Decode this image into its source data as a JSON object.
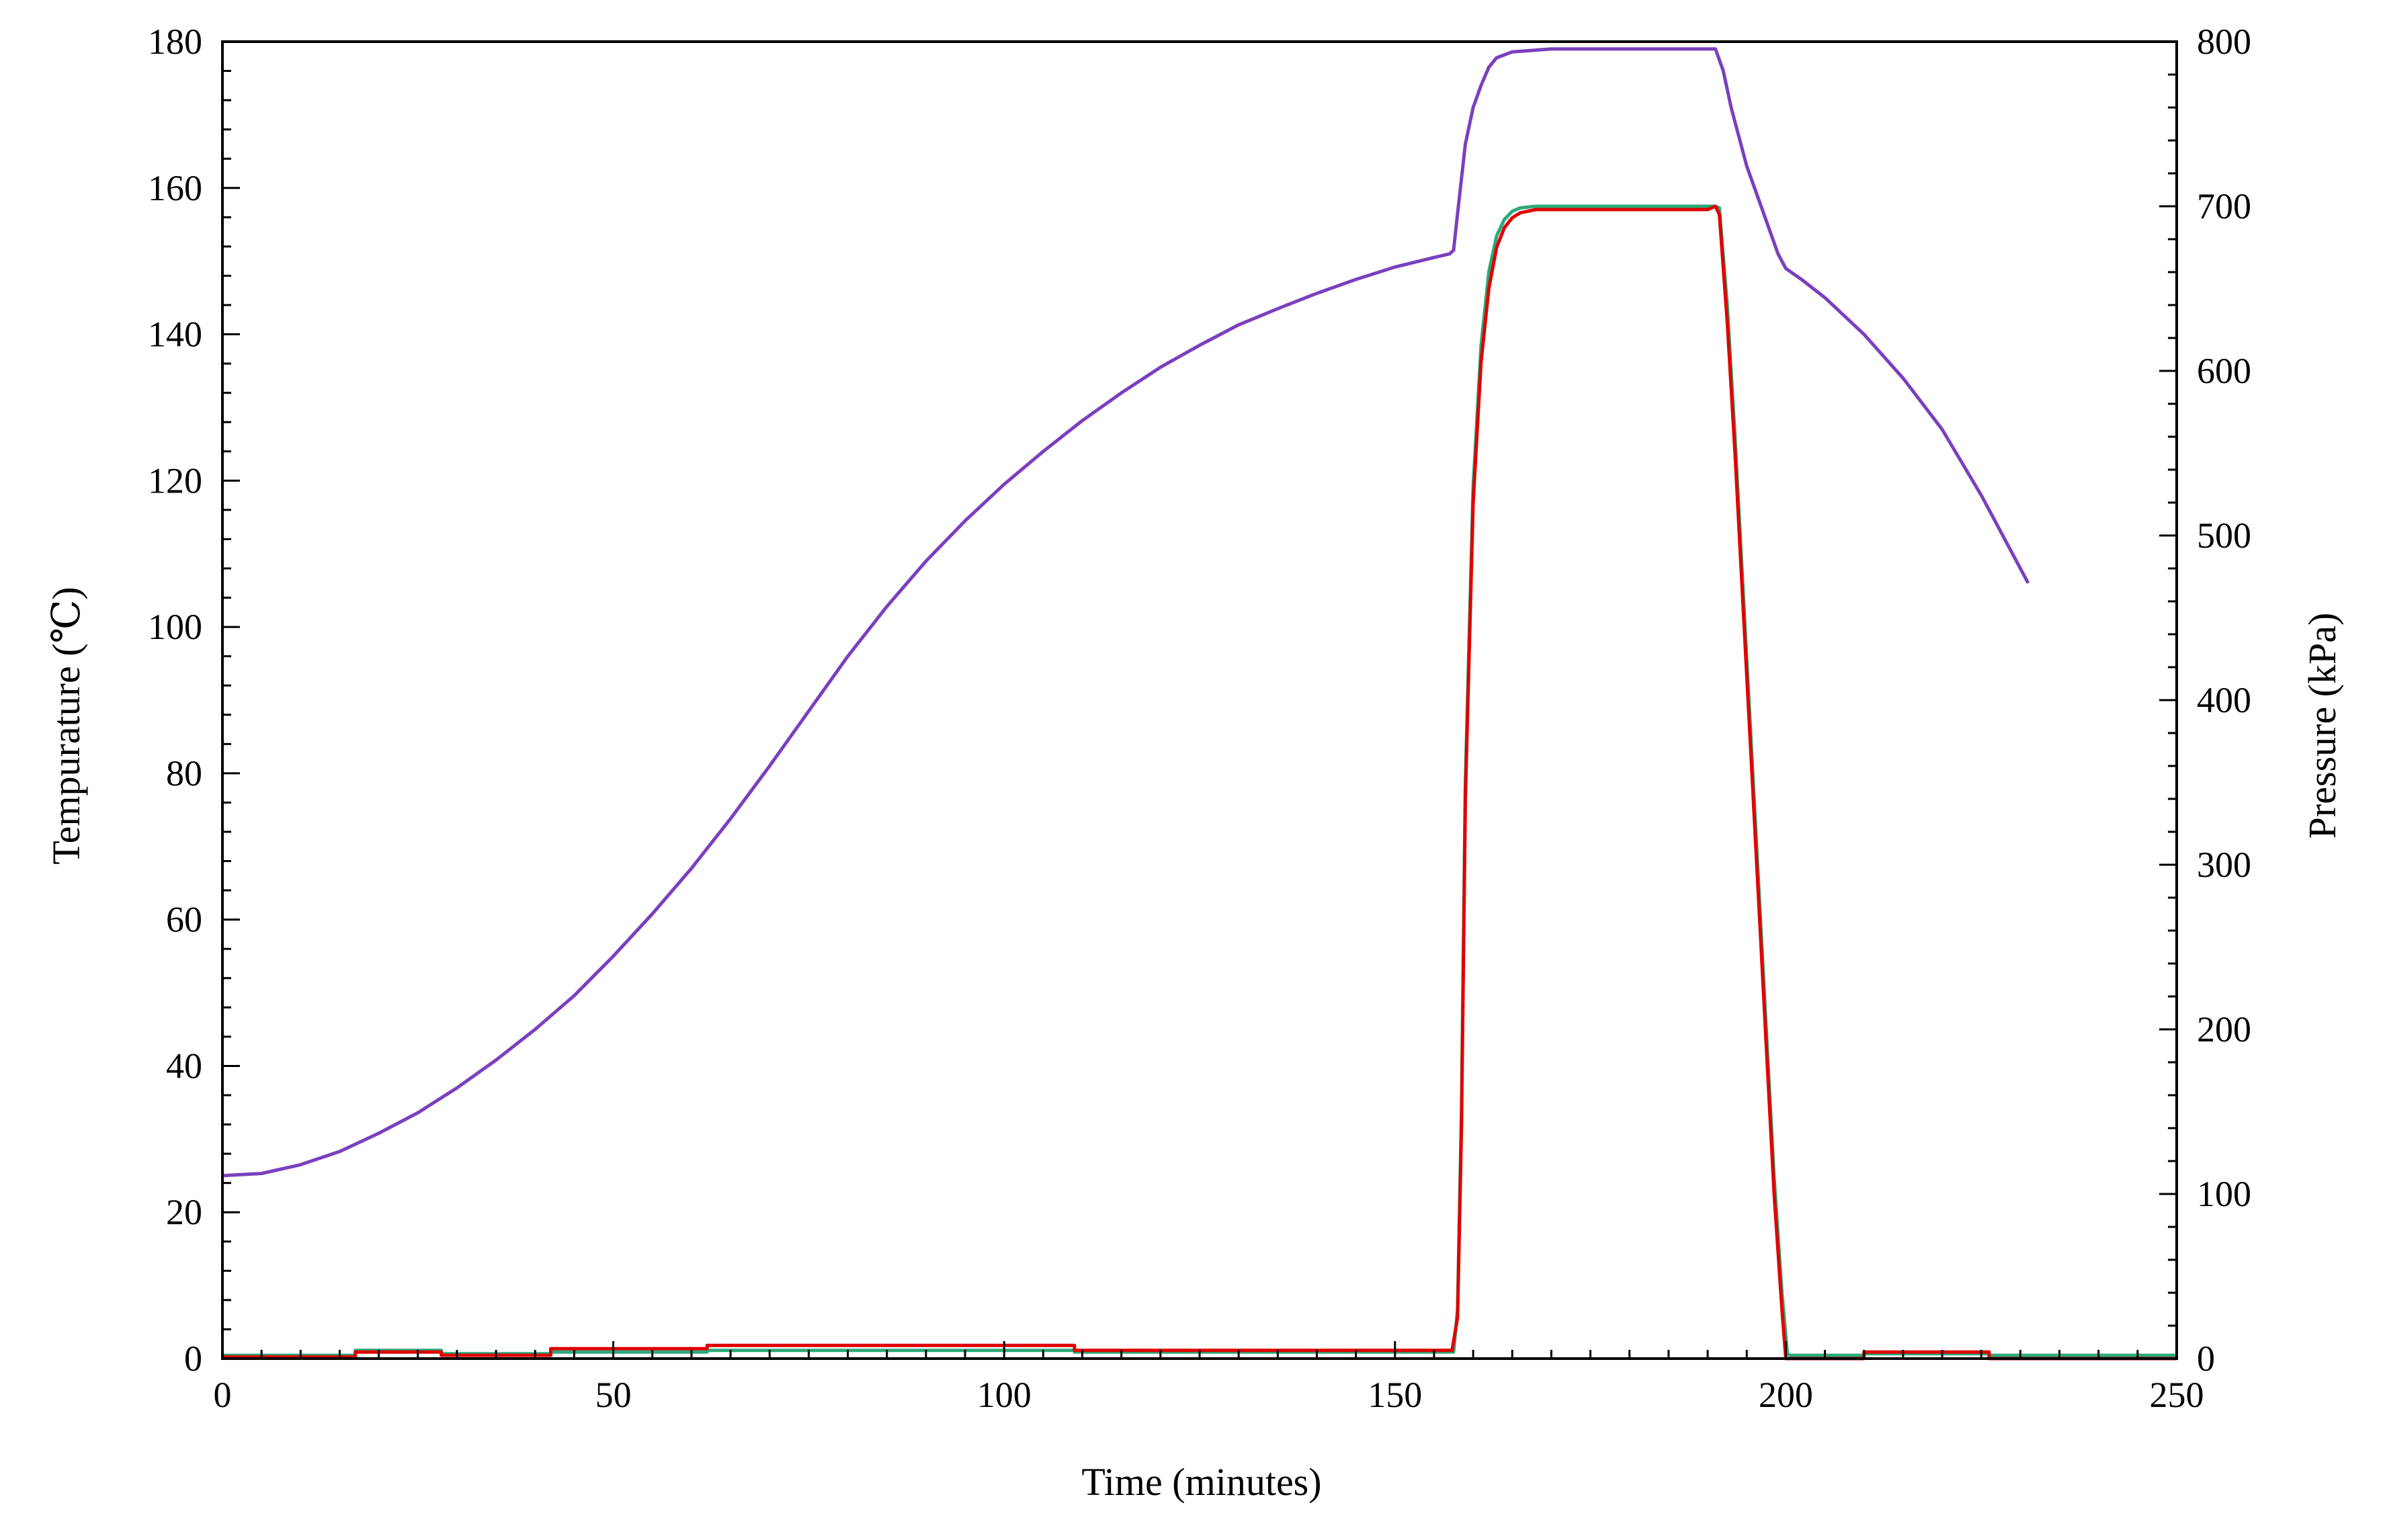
{
  "chart_data": {
    "type": "line",
    "title": "",
    "xlabel": "Time (minutes)",
    "ylabel_left": "Tempurature (℃)",
    "ylabel_right": "Pressure (kPa)",
    "xlim": [
      0,
      250
    ],
    "ylim_left": [
      0,
      180
    ],
    "ylim_right": [
      0,
      800
    ],
    "x_ticks": [
      "0",
      "50",
      "100",
      "150",
      "200",
      "250"
    ],
    "y_left_ticks": [
      "0",
      "20",
      "40",
      "60",
      "80",
      "100",
      "120",
      "140",
      "160",
      "180"
    ],
    "y_right_ticks": [
      "0",
      "100",
      "200",
      "300",
      "400",
      "500",
      "600",
      "700",
      "800"
    ],
    "grid": false,
    "legend": "none",
    "series": [
      {
        "axis": "left",
        "color": "#7B3FBF",
        "points": [
          [
            0,
            25
          ],
          [
            5,
            25.3
          ],
          [
            10,
            26.5
          ],
          [
            15,
            28.3
          ],
          [
            20,
            30.8
          ],
          [
            25,
            33.6
          ],
          [
            30,
            37
          ],
          [
            35,
            40.8
          ],
          [
            40,
            45
          ],
          [
            45,
            49.6
          ],
          [
            50,
            55
          ],
          [
            55,
            60.8
          ],
          [
            60,
            67
          ],
          [
            65,
            73.8
          ],
          [
            70,
            81
          ],
          [
            75,
            88.5
          ],
          [
            80,
            96
          ],
          [
            85,
            102.8
          ],
          [
            90,
            109
          ],
          [
            95,
            114.5
          ],
          [
            100,
            119.5
          ],
          [
            105,
            124
          ],
          [
            110,
            128.2
          ],
          [
            115,
            132
          ],
          [
            120,
            135.5
          ],
          [
            125,
            138.5
          ],
          [
            130,
            141.3
          ],
          [
            135,
            143.5
          ],
          [
            140,
            145.6
          ],
          [
            145,
            147.5
          ],
          [
            150,
            149.2
          ],
          [
            155,
            150.5
          ],
          [
            157,
            151
          ],
          [
            157.5,
            151.5
          ],
          [
            158,
            156.5
          ],
          [
            159,
            166
          ],
          [
            160,
            171
          ],
          [
            161,
            174
          ],
          [
            162,
            176.5
          ],
          [
            163,
            177.8
          ],
          [
            165,
            178.6
          ],
          [
            170,
            179
          ],
          [
            180,
            179
          ],
          [
            190,
            179
          ],
          [
            191,
            179
          ],
          [
            192,
            176
          ],
          [
            193,
            171
          ],
          [
            195,
            163
          ],
          [
            197,
            157
          ],
          [
            199,
            151
          ],
          [
            200,
            149
          ],
          [
            202,
            147.5
          ],
          [
            205,
            145
          ],
          [
            210,
            140
          ],
          [
            215,
            134
          ],
          [
            220,
            127
          ],
          [
            225,
            118
          ],
          [
            227,
            114
          ],
          [
            229,
            110
          ],
          [
            231,
            106
          ]
        ]
      },
      {
        "axis": "right",
        "color": "#2AAA7A",
        "points": [
          [
            0,
            2
          ],
          [
            17,
            2
          ],
          [
            17,
            5
          ],
          [
            28,
            5
          ],
          [
            28,
            3
          ],
          [
            42,
            3
          ],
          [
            42,
            4
          ],
          [
            62,
            4
          ],
          [
            62,
            5
          ],
          [
            109,
            5
          ],
          [
            109,
            4
          ],
          [
            157,
            4
          ],
          [
            157.5,
            4
          ],
          [
            158,
            30
          ],
          [
            158.5,
            150
          ],
          [
            159,
            350
          ],
          [
            160,
            530
          ],
          [
            161,
            615
          ],
          [
            162,
            660
          ],
          [
            163,
            682
          ],
          [
            164,
            692
          ],
          [
            165,
            697
          ],
          [
            166,
            699
          ],
          [
            168,
            700
          ],
          [
            180,
            700
          ],
          [
            191,
            700
          ],
          [
            191.5,
            699
          ],
          [
            192.5,
            640
          ],
          [
            193.5,
            560
          ],
          [
            194.5,
            470
          ],
          [
            195.5,
            380
          ],
          [
            196.5,
            290
          ],
          [
            197.5,
            200
          ],
          [
            198.5,
            110
          ],
          [
            199.5,
            40
          ],
          [
            200.2,
            3
          ],
          [
            200.5,
            2
          ],
          [
            210,
            2
          ],
          [
            210,
            3
          ],
          [
            226,
            3
          ],
          [
            226,
            2
          ],
          [
            250,
            2
          ]
        ]
      },
      {
        "axis": "right",
        "color": "#E00000",
        "points": [
          [
            0,
            1
          ],
          [
            17,
            1
          ],
          [
            17,
            4
          ],
          [
            28,
            4
          ],
          [
            28,
            2
          ],
          [
            42,
            2
          ],
          [
            42,
            6
          ],
          [
            62,
            6
          ],
          [
            62,
            8
          ],
          [
            109,
            8
          ],
          [
            109,
            5
          ],
          [
            157,
            5
          ],
          [
            157.3,
            5
          ],
          [
            158,
            25
          ],
          [
            158.5,
            140
          ],
          [
            159,
            340
          ],
          [
            160,
            520
          ],
          [
            161,
            605
          ],
          [
            162,
            650
          ],
          [
            163,
            675
          ],
          [
            164,
            687
          ],
          [
            165,
            693
          ],
          [
            166,
            696
          ],
          [
            168,
            698
          ],
          [
            180,
            698
          ],
          [
            190,
            698
          ],
          [
            191,
            700
          ],
          [
            191.5,
            695
          ],
          [
            192.5,
            630
          ],
          [
            193.5,
            550
          ],
          [
            194.5,
            460
          ],
          [
            195.5,
            370
          ],
          [
            196.5,
            280
          ],
          [
            197.5,
            190
          ],
          [
            198.5,
            100
          ],
          [
            199.5,
            30
          ],
          [
            200,
            0
          ],
          [
            210,
            0
          ],
          [
            210,
            4
          ],
          [
            226,
            4
          ],
          [
            226,
            0
          ],
          [
            250,
            0
          ]
        ]
      }
    ]
  }
}
